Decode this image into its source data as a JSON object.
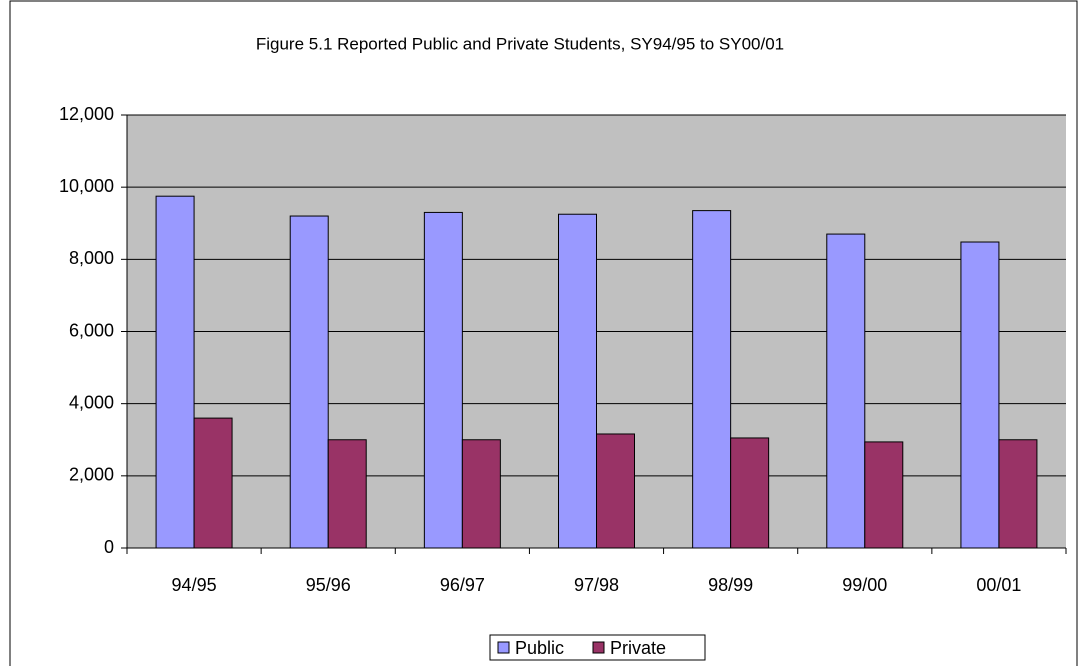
{
  "chart_data": {
    "type": "bar",
    "title": "Figure 5.1 Reported Public and Private Students, SY94/95 to SY00/01",
    "categories": [
      "94/95",
      "95/96",
      "96/97",
      "97/98",
      "98/99",
      "99/00",
      "00/01"
    ],
    "series": [
      {
        "name": "Public",
        "color": "#9999ff",
        "values": [
          9750,
          9200,
          9300,
          9250,
          9350,
          8700,
          8480
        ]
      },
      {
        "name": "Private",
        "color": "#993366",
        "values": [
          3600,
          3000,
          3000,
          3160,
          3050,
          2940,
          3000
        ]
      }
    ],
    "ylim": [
      0,
      12000
    ],
    "yticks": [
      0,
      {
        "value": 2000,
        "label": "2,000"
      },
      {
        "value": 4000,
        "label": "4,000"
      },
      {
        "value": 6000,
        "label": "6,000"
      },
      {
        "value": 8000,
        "label": "8,000"
      },
      {
        "value": 10000,
        "label": "10,000"
      },
      {
        "value": 12000,
        "label": "12,000"
      }
    ],
    "grid": true,
    "legend": "bottom"
  }
}
